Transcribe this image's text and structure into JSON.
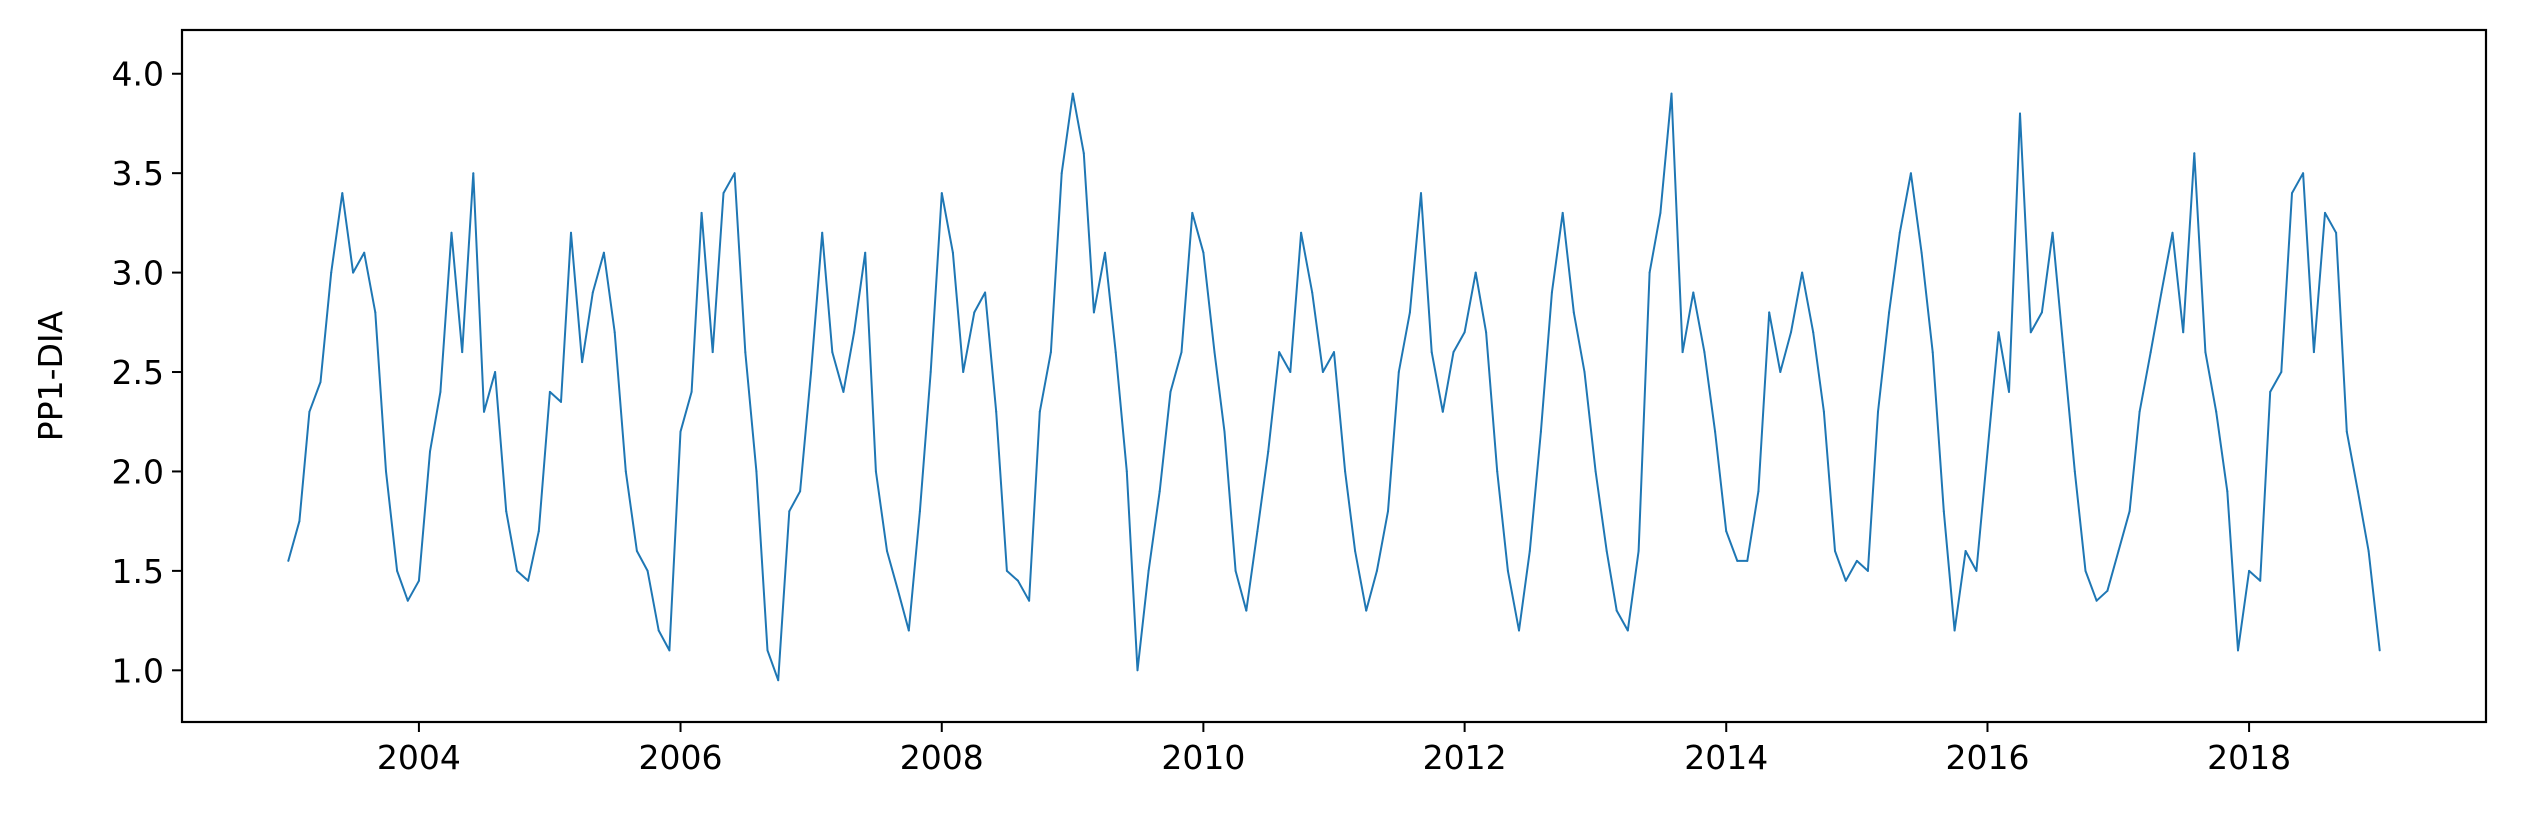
{
  "chart_data": {
    "type": "line",
    "title": "",
    "xlabel": "",
    "ylabel": "PP1-DIA",
    "xlim": [
      "2002-03-10",
      "2019-10-25"
    ],
    "ylim": [
      0.74,
      4.22
    ],
    "xticks": [
      "2004",
      "2006",
      "2008",
      "2010",
      "2012",
      "2014",
      "2016",
      "2018"
    ],
    "yticks": [
      "1.0",
      "1.5",
      "2.0",
      "2.5",
      "3.0",
      "3.5",
      "4.0"
    ],
    "grid": false,
    "legend": "none",
    "series": [
      {
        "color": "#1f77b4",
        "x": [
          "2003-01-01",
          "2003-02-01",
          "2003-03-01",
          "2003-04-01",
          "2003-05-01",
          "2003-06-01",
          "2003-07-01",
          "2003-08-01",
          "2003-09-01",
          "2003-10-01",
          "2003-11-01",
          "2003-12-01",
          "2004-01-01",
          "2004-02-01",
          "2004-03-01",
          "2004-04-01",
          "2004-05-01",
          "2004-06-01",
          "2004-07-01",
          "2004-08-01",
          "2004-09-01",
          "2004-10-01",
          "2004-11-01",
          "2004-12-01",
          "2005-01-01",
          "2005-02-01",
          "2005-03-01",
          "2005-04-01",
          "2005-05-01",
          "2005-06-01",
          "2005-07-01",
          "2005-08-01",
          "2005-09-01",
          "2005-10-01",
          "2005-11-01",
          "2005-12-01",
          "2006-01-01",
          "2006-02-01",
          "2006-03-01",
          "2006-04-01",
          "2006-05-01",
          "2006-06-01",
          "2006-07-01",
          "2006-08-01",
          "2006-09-01",
          "2006-10-01",
          "2006-11-01",
          "2006-12-01",
          "2007-01-01",
          "2007-02-01",
          "2007-03-01",
          "2007-04-01",
          "2007-05-01",
          "2007-06-01",
          "2007-07-01",
          "2007-08-01",
          "2007-09-01",
          "2007-10-01",
          "2007-11-01",
          "2007-12-01",
          "2008-01-01",
          "2008-02-01",
          "2008-03-01",
          "2008-04-01",
          "2008-05-01",
          "2008-06-01",
          "2008-07-01",
          "2008-08-01",
          "2008-09-01",
          "2008-10-01",
          "2008-11-01",
          "2008-12-01",
          "2009-01-01",
          "2009-02-01",
          "2009-03-01",
          "2009-04-01",
          "2009-05-01",
          "2009-06-01",
          "2009-07-01",
          "2009-08-01",
          "2009-09-01",
          "2009-10-01",
          "2009-11-01",
          "2009-12-01",
          "2010-01-01",
          "2010-02-01",
          "2010-03-01",
          "2010-04-01",
          "2010-05-01",
          "2010-06-01",
          "2010-07-01",
          "2010-08-01",
          "2010-09-01",
          "2010-10-01",
          "2010-11-01",
          "2010-12-01",
          "2011-01-01",
          "2011-02-01",
          "2011-03-01",
          "2011-04-01",
          "2011-05-01",
          "2011-06-01",
          "2011-07-01",
          "2011-08-01",
          "2011-09-01",
          "2011-10-01",
          "2011-11-01",
          "2011-12-01",
          "2012-01-01",
          "2012-02-01",
          "2012-03-01",
          "2012-04-01",
          "2012-05-01",
          "2012-06-01",
          "2012-07-01",
          "2012-08-01",
          "2012-09-01",
          "2012-10-01",
          "2012-11-01",
          "2012-12-01",
          "2013-01-01",
          "2013-02-01",
          "2013-03-01",
          "2013-04-01",
          "2013-05-01",
          "2013-06-01",
          "2013-07-01",
          "2013-08-01",
          "2013-09-01",
          "2013-10-01",
          "2013-11-01",
          "2013-12-01",
          "2014-01-01",
          "2014-02-01",
          "2014-03-01",
          "2014-04-01",
          "2014-05-01",
          "2014-06-01",
          "2014-07-01",
          "2014-08-01",
          "2014-09-01",
          "2014-10-01",
          "2014-11-01",
          "2014-12-01",
          "2015-01-01",
          "2015-02-01",
          "2015-03-01",
          "2015-04-01",
          "2015-05-01",
          "2015-06-01",
          "2015-07-01",
          "2015-08-01",
          "2015-09-01",
          "2015-10-01",
          "2015-11-01",
          "2015-12-01",
          "2016-01-01",
          "2016-02-01",
          "2016-03-01",
          "2016-04-01",
          "2016-05-01",
          "2016-06-01",
          "2016-07-01",
          "2016-08-01",
          "2016-09-01",
          "2016-10-01",
          "2016-11-01",
          "2016-12-01",
          "2017-01-01",
          "2017-02-01",
          "2017-03-01",
          "2017-04-01",
          "2017-05-01",
          "2017-06-01",
          "2017-07-01",
          "2017-08-01",
          "2017-09-01",
          "2017-10-01",
          "2017-11-01",
          "2017-12-01",
          "2018-01-01",
          "2018-02-01",
          "2018-03-01",
          "2018-04-01",
          "2018-05-01",
          "2018-06-01",
          "2018-07-01",
          "2018-08-01",
          "2018-09-01",
          "2018-10-01",
          "2018-11-01",
          "2018-12-01",
          "2019-01-01"
        ],
        "y": [
          1.55,
          1.75,
          2.3,
          2.45,
          3.0,
          3.4,
          3.0,
          3.1,
          2.8,
          2.0,
          1.5,
          1.35,
          1.45,
          2.1,
          2.4,
          3.2,
          2.6,
          3.5,
          2.3,
          2.5,
          1.8,
          1.5,
          1.45,
          1.7,
          2.4,
          2.35,
          3.2,
          2.55,
          2.9,
          3.1,
          2.7,
          2.0,
          1.6,
          1.5,
          1.2,
          1.1,
          2.2,
          2.4,
          3.3,
          2.6,
          3.4,
          3.5,
          2.6,
          2.0,
          1.1,
          0.95,
          1.8,
          1.9,
          2.5,
          3.2,
          2.6,
          2.4,
          2.7,
          3.1,
          2.0,
          1.6,
          1.4,
          1.2,
          1.8,
          2.5,
          3.4,
          3.1,
          2.5,
          2.8,
          2.9,
          2.3,
          1.5,
          1.45,
          1.35,
          2.3,
          2.6,
          3.5,
          3.9,
          3.6,
          2.8,
          3.1,
          2.6,
          2.0,
          1.0,
          1.5,
          1.9,
          2.4,
          2.6,
          3.3,
          3.1,
          2.6,
          2.2,
          1.5,
          1.3,
          1.7,
          2.1,
          2.6,
          2.5,
          3.2,
          2.9,
          2.5,
          2.6,
          2.0,
          1.6,
          1.3,
          1.5,
          1.8,
          2.5,
          2.8,
          3.4,
          2.6,
          2.3,
          2.6,
          2.7,
          3.0,
          2.7,
          2.0,
          1.5,
          1.2,
          1.6,
          2.2,
          2.9,
          3.3,
          2.8,
          2.5,
          2.0,
          1.6,
          1.3,
          1.2,
          1.6,
          3.0,
          3.3,
          3.9,
          2.6,
          2.9,
          2.6,
          2.2,
          1.7,
          1.55,
          1.55,
          1.9,
          2.8,
          2.5,
          2.7,
          3.0,
          2.7,
          2.3,
          1.6,
          1.45,
          1.55,
          1.5,
          2.3,
          2.8,
          3.2,
          3.5,
          3.1,
          2.6,
          1.8,
          1.2,
          1.6,
          1.5,
          2.1,
          2.7,
          2.4,
          3.8,
          2.7,
          2.8,
          3.2,
          2.6,
          2.0,
          1.5,
          1.35,
          1.4,
          1.6,
          1.8,
          2.3,
          2.6,
          2.9,
          3.2,
          2.7,
          3.6,
          2.6,
          2.3,
          1.9,
          1.1,
          1.5,
          1.45,
          2.4,
          2.5,
          3.4,
          3.5,
          2.6,
          3.3,
          3.2,
          2.2,
          1.9,
          1.6,
          1.1
        ]
      }
    ]
  }
}
